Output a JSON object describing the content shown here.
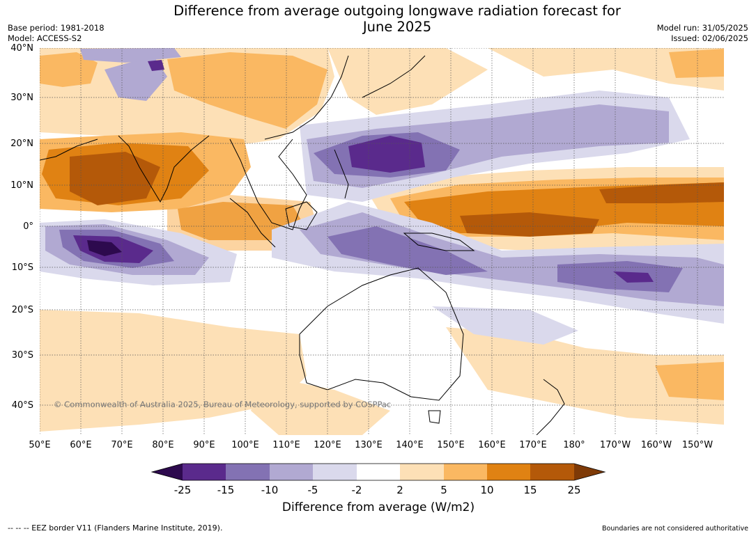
{
  "title_line1": "Difference from average outgoing longwave radiation forecast for",
  "title_line2": "June 2025",
  "meta_left": {
    "base_period": "Base period: 1981-2018",
    "model": "Model: ACCESS-S2"
  },
  "meta_right": {
    "model_run": "Model run: 31/05/2025",
    "issued": "Issued: 02/06/2025"
  },
  "copyright": "© Commonwealth of Australia 2025, Bureau of Meteorology, supported by COSPPac",
  "lat_labels": [
    "40°N",
    "30°N",
    "20°N",
    "10°N",
    "0°",
    "10°S",
    "20°S",
    "30°S",
    "40°S"
  ],
  "lon_labels": [
    "50°E",
    "60°E",
    "70°E",
    "80°E",
    "90°E",
    "100°E",
    "110°E",
    "120°E",
    "130°E",
    "140°E",
    "150°E",
    "160°E",
    "170°E",
    "180°",
    "170°W",
    "160°W",
    "150°W"
  ],
  "colorbar": {
    "labels": [
      "-25",
      "-15",
      "-10",
      "-5",
      "-2",
      "2",
      "5",
      "10",
      "15",
      "25"
    ],
    "colors": [
      "#2d0a4e",
      "#5a2a8c",
      "#8372b3",
      "#b1a9d2",
      "#dad9ec",
      "#ffffff",
      "#fde0b6",
      "#fab862",
      "#e08213",
      "#b45909",
      "#7e3a07"
    ],
    "title": "Difference from average (W/m2)"
  },
  "footer_left": "--  --  -- EEZ border V11 (Flanders Marine Institute, 2019).",
  "footer_right": "Boundaries are not considered authoritative"
}
